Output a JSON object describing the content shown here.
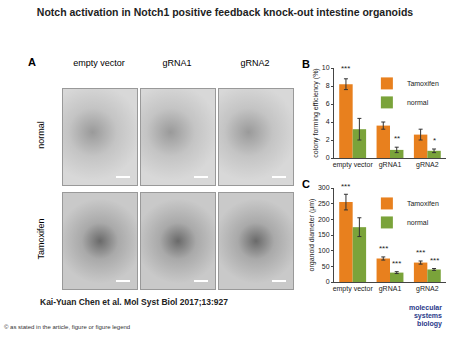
{
  "title": "Notch activation in Notch1 positive feedback knock-out intestine organoids",
  "panel_A": {
    "label": "A",
    "columns": [
      "empty vector",
      "gRNA1",
      "gRNA2"
    ],
    "rows": [
      "normal",
      "Tamoxifen"
    ]
  },
  "chart_data": [
    {
      "panel": "B",
      "type": "bar",
      "y_label": "colony forming efficiency (%)",
      "categories": [
        "empty vector",
        "gRNA1",
        "gRNA2"
      ],
      "series": [
        {
          "name": "Tamoxifen",
          "color": "#e8801e",
          "values": [
            8.2,
            3.6,
            2.6
          ],
          "errors": [
            0.6,
            0.4,
            0.6
          ]
        },
        {
          "name": "normal",
          "color": "#7aa33a",
          "values": [
            3.2,
            0.9,
            0.8
          ],
          "errors": [
            1.2,
            0.3,
            0.2
          ]
        }
      ],
      "ylim": [
        0,
        10
      ],
      "yticks": [
        0,
        2,
        4,
        6,
        8,
        10
      ],
      "legend": "top right",
      "annotations": [
        {
          "text": "***",
          "category": 0,
          "series": 0,
          "y": 9.2
        },
        {
          "text": "**",
          "category": 1,
          "series": 1,
          "y": 1.5
        },
        {
          "text": "*",
          "category": 2,
          "series": 1,
          "y": 1.2
        }
      ]
    },
    {
      "panel": "C",
      "type": "bar",
      "y_label": "organoid diameter (µm)",
      "categories": [
        "empty vector",
        "gRNA1",
        "gRNA2"
      ],
      "series": [
        {
          "name": "Tamoxifen",
          "color": "#e8801e",
          "values": [
            255,
            75,
            62
          ],
          "errors": [
            25,
            5,
            5
          ]
        },
        {
          "name": "normal",
          "color": "#7aa33a",
          "values": [
            175,
            30,
            40
          ],
          "errors": [
            30,
            3,
            3
          ]
        }
      ],
      "ylim": [
        0,
        300
      ],
      "yticks": [
        0,
        50,
        100,
        150,
        200,
        250,
        300
      ],
      "legend": "top right",
      "annotations": [
        {
          "text": "***",
          "category": 0,
          "series": 0,
          "y": 285
        },
        {
          "text": "***",
          "category": 1,
          "series": 0,
          "y": 86
        },
        {
          "text": "***",
          "category": 1,
          "series": 1,
          "y": 39
        },
        {
          "text": "***",
          "category": 2,
          "series": 0,
          "y": 73
        },
        {
          "text": "***",
          "category": 2,
          "series": 1,
          "y": 49
        }
      ]
    }
  ],
  "citation": "Kai-Yuan Chen et al. Mol Syst Biol 2017;13:927",
  "copyright": "© as stated in the article, figure or figure legend",
  "logo": "molecular systems biology"
}
